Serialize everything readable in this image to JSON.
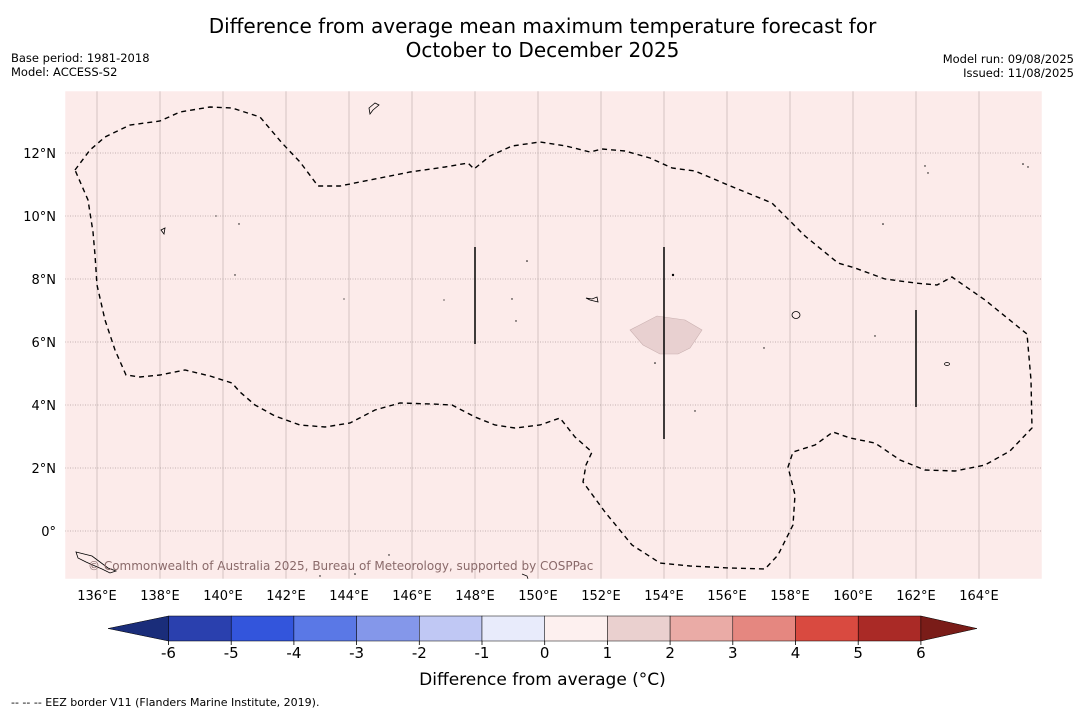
{
  "title_line1": "Difference from average mean maximum temperature forecast for",
  "title_line2": "October to December 2025",
  "base_period": "Base period: 1981-2018",
  "model": "Model: ACCESS-S2",
  "model_run": "Model run: 09/08/2025",
  "issued": "Issued: 11/08/2025",
  "copyright": "© Commonwealth of Australia 2025, Bureau of Meteorology, supported by COSPPac",
  "footnote": "-- -- -- EEZ border V11 (Flanders Marine Institute, 2019).",
  "colorbar_label": "Difference from average (°C)",
  "lon_labels": [
    "136°E",
    "138°E",
    "140°E",
    "142°E",
    "144°E",
    "146°E",
    "148°E",
    "150°E",
    "152°E",
    "154°E",
    "156°E",
    "158°E",
    "160°E",
    "162°E",
    "164°E"
  ],
  "lat_labels": [
    "12°N",
    "10°N",
    "8°N",
    "6°N",
    "4°N",
    "2°N",
    "0°"
  ],
  "colorbar_ticks": [
    "-6",
    "-5",
    "-4",
    "-3",
    "-2",
    "-1",
    "0",
    "1",
    "2",
    "3",
    "4",
    "5",
    "6"
  ],
  "colorbar_colors": {
    "under": "#1a2d7a",
    "bins": [
      "#2a40ae",
      "#3355dc",
      "#5a78e6",
      "#8497ea",
      "#c0c8f4",
      "#e8ebfb",
      "#fdf0ef",
      "#ead0cf",
      "#eaaba6",
      "#e58780",
      "#d94a40",
      "#aa2a26"
    ],
    "over": "#7a1c18"
  },
  "map_background": "#fcebea",
  "anomaly_patch_color": "#e8d0d0"
}
